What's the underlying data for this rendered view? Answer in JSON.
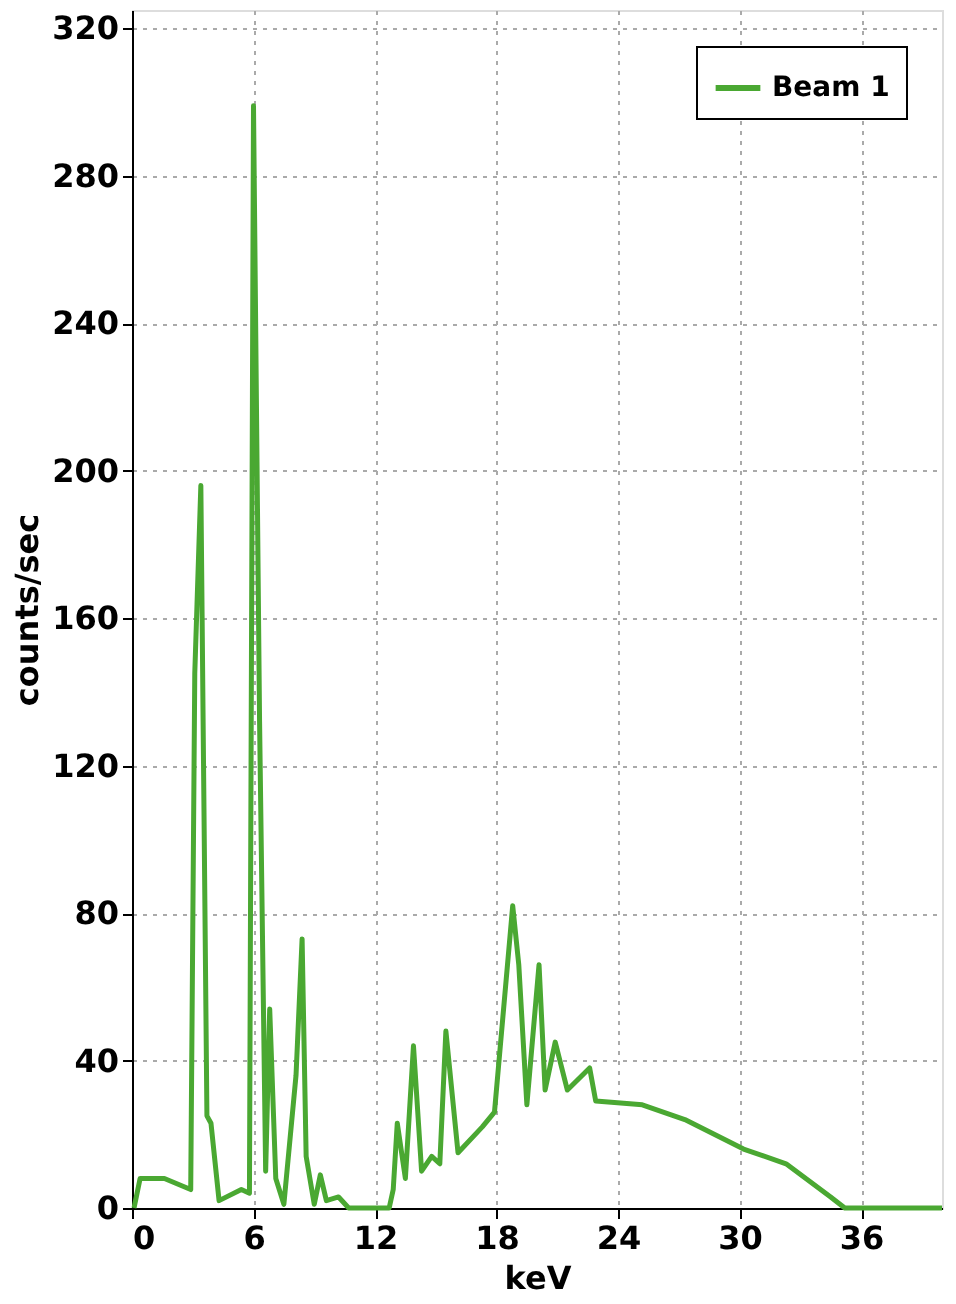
{
  "chart_data": {
    "type": "line",
    "xlabel": "keV",
    "ylabel": "counts/sec",
    "xlim": [
      0,
      40
    ],
    "xticks": [
      0,
      6,
      12,
      18,
      24,
      30,
      36
    ],
    "ylim": [
      0,
      325
    ],
    "yticks": [
      0,
      40,
      80,
      120,
      160,
      200,
      240,
      280,
      320
    ],
    "grid": true,
    "legend": "top right",
    "line_style": "solid",
    "marker": "none",
    "series": [
      {
        "name": "Beam 1",
        "color": "#4aa832",
        "x": [
          0.1,
          0.4,
          1.6,
          2.9,
          3.1,
          3.4,
          3.7,
          3.9,
          4.3,
          5.4,
          5.8,
          6.0,
          6.3,
          6.6,
          6.8,
          7.1,
          7.5,
          8.1,
          8.4,
          8.6,
          9.0,
          9.3,
          9.6,
          10.2,
          10.7,
          12.7,
          12.9,
          13.1,
          13.5,
          13.9,
          14.3,
          14.8,
          15.2,
          15.5,
          16.1,
          17.3,
          17.9,
          18.8,
          19.1,
          19.5,
          20.1,
          20.4,
          20.9,
          21.5,
          22.6,
          22.9,
          25.2,
          27.3,
          30.2,
          32.3,
          34.5,
          35.2,
          40
        ],
        "values": [
          0,
          8,
          8,
          5,
          145,
          196,
          25,
          23,
          2,
          5,
          4,
          299,
          132,
          10,
          54,
          8,
          1,
          36,
          73,
          14,
          1,
          9,
          2,
          3,
          0,
          0,
          5,
          23,
          8,
          44,
          10,
          14,
          12,
          48,
          15,
          22,
          26,
          82,
          66,
          28,
          66,
          32,
          45,
          32,
          38,
          29,
          28,
          24,
          16,
          12,
          3,
          0,
          0
        ]
      }
    ]
  }
}
